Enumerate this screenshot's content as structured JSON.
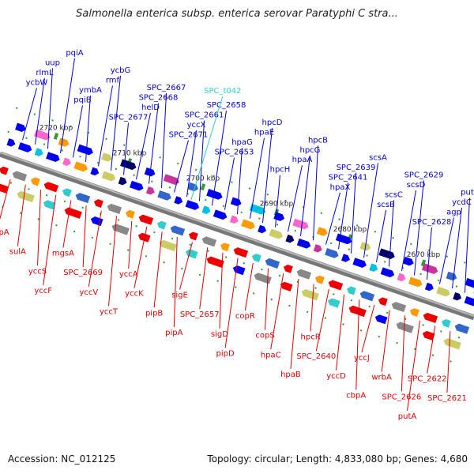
{
  "title": "Salmonella enterica subsp. enterica serovar Paratyphi C stra...",
  "footer": {
    "accession": "Accession: NC_012125",
    "summary": "Topology: circular; Length: 4,833,080 bp; Genes: 4,680"
  },
  "colors": {
    "forward_label": "#0000cc",
    "reverse_label": "#dd0000",
    "trna_label": "#33cccc",
    "backbone": "#999999",
    "tick": "#339933"
  },
  "scale_labels": [
    "2720 kbp",
    "2710 kbp",
    "2700 kbp",
    "2690 kbp",
    "2680 kbp",
    "2670 kbp"
  ],
  "forward_labels": [
    "ycbW",
    "rlmL",
    "uup",
    "pqiA",
    "pqiB",
    "ymbA",
    "rmf",
    "ycbG",
    "SPC_2677",
    "helD",
    "SPC_2668",
    "SPC_2667",
    "SPC_2671",
    "yccX",
    "SPC_2661",
    "SPC_2658",
    "SPC_2653",
    "hpaG",
    "hpaE",
    "hpcD",
    "hpcH",
    "hpaA",
    "hpcG",
    "hpcB",
    "hpaX",
    "SPC_2641",
    "SPC_2639",
    "scsA",
    "scsB",
    "scsC",
    "scsD",
    "SPC_2629",
    "SPC_2628",
    "agp",
    "ycdC",
    "putP"
  ],
  "trna_labels": [
    "SPC_t042"
  ],
  "reverse_labels": [
    "ompA",
    "sulA",
    "yccS",
    "yccF",
    "mgsA",
    "SPC_2669",
    "yccV",
    "yccT",
    "yccA",
    "yccK",
    "pipB",
    "pipA",
    "sigE",
    "SPC_2657",
    "sigD",
    "pipD",
    "copR",
    "copS",
    "hpaC",
    "hpaB",
    "hpcR",
    "SPC_2640",
    "yccD",
    "cbpA",
    "yccJ",
    "wrbA",
    "SPC_2626",
    "putA",
    "SPC_2622",
    "SPC_2621"
  ]
}
